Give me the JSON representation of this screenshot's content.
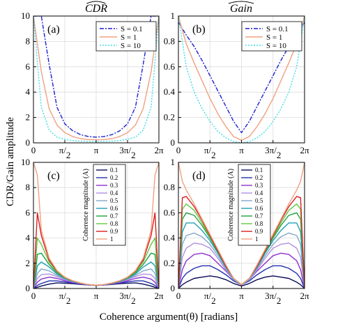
{
  "figure": {
    "ylabel": "CDR/Gain amplitude",
    "xlabel": "Coherence argument(θ) [radians]"
  },
  "chart_data": [
    {
      "id": "a",
      "type": "line",
      "column_title": "CDR",
      "panel_label": "(a)",
      "x_ticks": [
        "0",
        "π/2",
        "π",
        "3π/2",
        "2π"
      ],
      "x_tick_values": [
        0,
        1.5708,
        3.1416,
        4.7124,
        6.2832
      ],
      "xlim": [
        0,
        6.2832
      ],
      "ylim": [
        0,
        10
      ],
      "y_ticks": [
        "0",
        "2",
        "4",
        "6",
        "8",
        "10"
      ],
      "y_tick_values": [
        0,
        2,
        4,
        6,
        8,
        10
      ],
      "grid": true,
      "legend_position": "top-right",
      "x": [
        0,
        0.3927,
        0.7854,
        1.1781,
        1.5708,
        1.9635,
        2.3562,
        2.7489,
        3.1416,
        3.5343,
        3.927,
        4.3197,
        4.7124,
        5.1051,
        5.4978,
        5.8905,
        6.2832
      ],
      "series": [
        {
          "name": "S = 0.1",
          "color": "#1e1ed2",
          "dash": "6,2,2,2",
          "values": [
            10,
            10,
            6.2,
            2.8,
            1.5,
            0.95,
            0.65,
            0.5,
            0.45,
            0.5,
            0.65,
            0.95,
            1.5,
            2.8,
            6.2,
            10,
            10
          ]
        },
        {
          "name": "S = 1",
          "color": "#f0a080",
          "dash": "",
          "values": [
            10,
            5.6,
            2.7,
            1.4,
            0.8,
            0.5,
            0.33,
            0.26,
            0.24,
            0.26,
            0.33,
            0.5,
            0.8,
            1.4,
            2.7,
            5.6,
            10
          ]
        },
        {
          "name": "S = 10",
          "color": "#40dce8",
          "dash": "2,2",
          "values": [
            10,
            2.8,
            1.0,
            0.45,
            0.28,
            0.18,
            0.13,
            0.11,
            0.1,
            0.11,
            0.13,
            0.18,
            0.28,
            0.45,
            1.0,
            2.8,
            10
          ]
        }
      ]
    },
    {
      "id": "b",
      "type": "line",
      "column_title": "Gain",
      "panel_label": "(b)",
      "x_ticks": [
        "0",
        "π/2",
        "π",
        "3π/2",
        "2π"
      ],
      "x_tick_values": [
        0,
        1.5708,
        3.1416,
        4.7124,
        6.2832
      ],
      "xlim": [
        0,
        6.2832
      ],
      "ylim": [
        0,
        1
      ],
      "y_ticks": [
        "0",
        "0.2",
        "0.4",
        "0.6",
        "0.8",
        "1"
      ],
      "y_tick_values": [
        0,
        0.2,
        0.4,
        0.6,
        0.8,
        1
      ],
      "grid": true,
      "legend_position": "top-right",
      "x": [
        0,
        0.3927,
        0.7854,
        1.1781,
        1.5708,
        1.9635,
        2.3562,
        2.7489,
        3.1416,
        3.5343,
        3.927,
        4.3197,
        4.7124,
        5.1051,
        5.4978,
        5.8905,
        6.2832
      ],
      "series": [
        {
          "name": "S = 0.1",
          "color": "#1e1ed2",
          "dash": "6,2,2,2",
          "values": [
            0.95,
            0.85,
            0.76,
            0.65,
            0.53,
            0.41,
            0.29,
            0.17,
            0.08,
            0.17,
            0.29,
            0.41,
            0.53,
            0.65,
            0.76,
            0.85,
            0.95
          ]
        },
        {
          "name": "S = 1",
          "color": "#f0a080",
          "dash": "",
          "values": [
            1.0,
            0.78,
            0.63,
            0.49,
            0.35,
            0.23,
            0.13,
            0.05,
            0.02,
            0.05,
            0.13,
            0.23,
            0.35,
            0.49,
            0.63,
            0.78,
            1.0
          ]
        },
        {
          "name": "S = 10",
          "color": "#40dce8",
          "dash": "2,2",
          "values": [
            1.0,
            0.6,
            0.4,
            0.27,
            0.17,
            0.09,
            0.04,
            0.01,
            0.0,
            0.01,
            0.04,
            0.09,
            0.17,
            0.27,
            0.4,
            0.6,
            1.0
          ]
        }
      ]
    },
    {
      "id": "c",
      "type": "line",
      "panel_label": "(c)",
      "x_ticks": [
        "0",
        "π/2",
        "π",
        "3π/2",
        "2π"
      ],
      "x_tick_values": [
        0,
        1.5708,
        3.1416,
        4.7124,
        6.2832
      ],
      "xlim": [
        0,
        6.2832
      ],
      "ylim": [
        0,
        10
      ],
      "y_ticks": [
        "0",
        "2",
        "4",
        "6",
        "8",
        "10"
      ],
      "y_tick_values": [
        0,
        2,
        4,
        6,
        8,
        10
      ],
      "grid": true,
      "legend_position": "top-center",
      "legend_title": "Coherence magnitude (A)",
      "x": [
        0,
        0.1963,
        0.3927,
        0.7854,
        1.1781,
        1.5708,
        1.9635,
        2.3562,
        2.7489,
        3.1416,
        3.5343,
        3.927,
        4.3197,
        4.7124,
        5.1051,
        5.4978,
        5.8905,
        6.0868,
        6.2832
      ],
      "series": [
        {
          "name": "0.1",
          "color": "#0a0a5a",
          "values": [
            0.0,
            0.1,
            0.2,
            0.35,
            0.45,
            0.42,
            0.38,
            0.32,
            0.27,
            0.25,
            0.27,
            0.32,
            0.38,
            0.42,
            0.45,
            0.35,
            0.2,
            0.1,
            0.0
          ]
        },
        {
          "name": "0.2",
          "color": "#2030b0",
          "values": [
            0.0,
            0.25,
            0.4,
            0.6,
            0.6,
            0.52,
            0.43,
            0.35,
            0.28,
            0.25,
            0.28,
            0.35,
            0.43,
            0.52,
            0.6,
            0.6,
            0.4,
            0.25,
            0.0
          ]
        },
        {
          "name": "0.3",
          "color": "#9030d0",
          "values": [
            0.0,
            0.5,
            0.75,
            0.9,
            0.8,
            0.62,
            0.48,
            0.37,
            0.28,
            0.25,
            0.28,
            0.37,
            0.48,
            0.62,
            0.8,
            0.9,
            0.75,
            0.5,
            0.0
          ]
        },
        {
          "name": "0.4",
          "color": "#b090e0",
          "values": [
            0.0,
            0.8,
            1.1,
            1.15,
            0.95,
            0.7,
            0.52,
            0.38,
            0.29,
            0.25,
            0.29,
            0.38,
            0.52,
            0.7,
            0.95,
            1.15,
            1.1,
            0.8,
            0.0
          ]
        },
        {
          "name": "0.5",
          "color": "#80a8c8",
          "values": [
            0.0,
            1.2,
            1.55,
            1.4,
            1.05,
            0.76,
            0.55,
            0.4,
            0.3,
            0.26,
            0.3,
            0.4,
            0.55,
            0.76,
            1.05,
            1.4,
            1.55,
            1.2,
            0.0
          ]
        },
        {
          "name": "0.6",
          "color": "#20a0b8",
          "values": [
            0.0,
            1.8,
            2.1,
            1.7,
            1.15,
            0.8,
            0.57,
            0.41,
            0.3,
            0.26,
            0.3,
            0.41,
            0.57,
            0.8,
            1.15,
            1.7,
            2.1,
            1.8,
            0.0
          ]
        },
        {
          "name": "0.7",
          "color": "#20a040",
          "values": [
            0.0,
            2.7,
            2.8,
            1.9,
            1.25,
            0.84,
            0.59,
            0.42,
            0.31,
            0.26,
            0.31,
            0.42,
            0.59,
            0.84,
            1.25,
            1.9,
            2.8,
            2.7,
            0.0
          ]
        },
        {
          "name": "0.8",
          "color": "#60c840",
          "values": [
            0.0,
            4.0,
            3.5,
            2.1,
            1.32,
            0.87,
            0.6,
            0.43,
            0.31,
            0.26,
            0.31,
            0.43,
            0.6,
            0.87,
            1.32,
            2.1,
            3.5,
            4.0,
            0.0
          ]
        },
        {
          "name": "0.9",
          "color": "#d82020",
          "values": [
            0.0,
            6.0,
            4.2,
            2.25,
            1.38,
            0.89,
            0.61,
            0.43,
            0.31,
            0.26,
            0.31,
            0.43,
            0.61,
            0.89,
            1.38,
            2.25,
            4.2,
            6.0,
            0.0
          ]
        },
        {
          "name": "1",
          "color": "#f0a080",
          "values": [
            10.0,
            9.0,
            4.6,
            2.4,
            1.42,
            0.9,
            0.62,
            0.44,
            0.31,
            0.26,
            0.31,
            0.44,
            0.62,
            0.9,
            1.42,
            2.4,
            4.6,
            9.0,
            10.0
          ]
        }
      ]
    },
    {
      "id": "d",
      "type": "line",
      "panel_label": "(d)",
      "x_ticks": [
        "0",
        "π/2",
        "π",
        "3π/2",
        "2π"
      ],
      "x_tick_values": [
        0,
        1.5708,
        3.1416,
        4.7124,
        6.2832
      ],
      "xlim": [
        0,
        6.2832
      ],
      "ylim": [
        0,
        1
      ],
      "y_ticks": [
        "0",
        "0.2",
        "0.4",
        "0.6",
        "0.8",
        "1"
      ],
      "y_tick_values": [
        0,
        0.2,
        0.4,
        0.6,
        0.8,
        1
      ],
      "grid": true,
      "legend_position": "top-center",
      "legend_title": "Coherence magnitude (A)",
      "x": [
        0,
        0.1963,
        0.3927,
        0.7854,
        1.1781,
        1.5708,
        1.9635,
        2.3562,
        2.7489,
        3.1416,
        3.5343,
        3.927,
        4.3197,
        4.7124,
        5.1051,
        5.4978,
        5.8905,
        6.0868,
        6.2832
      ],
      "series": [
        {
          "name": "0.1",
          "color": "#0a0a5a",
          "values": [
            0.0,
            0.03,
            0.05,
            0.08,
            0.09,
            0.1,
            0.09,
            0.07,
            0.04,
            0.02,
            0.04,
            0.07,
            0.09,
            0.1,
            0.09,
            0.08,
            0.05,
            0.03,
            0.0
          ]
        },
        {
          "name": "0.2",
          "color": "#2030b0",
          "values": [
            0.0,
            0.08,
            0.12,
            0.16,
            0.18,
            0.18,
            0.15,
            0.11,
            0.06,
            0.03,
            0.06,
            0.11,
            0.15,
            0.18,
            0.18,
            0.16,
            0.12,
            0.08,
            0.0
          ]
        },
        {
          "name": "0.3",
          "color": "#9030d0",
          "values": [
            0.0,
            0.15,
            0.22,
            0.27,
            0.28,
            0.26,
            0.2,
            0.14,
            0.07,
            0.03,
            0.07,
            0.14,
            0.2,
            0.26,
            0.28,
            0.27,
            0.22,
            0.15,
            0.0
          ]
        },
        {
          "name": "0.4",
          "color": "#b090e0",
          "values": [
            0.0,
            0.25,
            0.32,
            0.36,
            0.35,
            0.32,
            0.24,
            0.15,
            0.07,
            0.03,
            0.07,
            0.15,
            0.24,
            0.32,
            0.35,
            0.36,
            0.32,
            0.25,
            0.0
          ]
        },
        {
          "name": "0.5",
          "color": "#80a8c8",
          "values": [
            0.0,
            0.35,
            0.42,
            0.44,
            0.41,
            0.35,
            0.26,
            0.16,
            0.07,
            0.03,
            0.07,
            0.16,
            0.26,
            0.35,
            0.41,
            0.44,
            0.42,
            0.35,
            0.0
          ]
        },
        {
          "name": "0.6",
          "color": "#20a0b8",
          "values": [
            0.0,
            0.45,
            0.52,
            0.52,
            0.46,
            0.38,
            0.28,
            0.17,
            0.08,
            0.03,
            0.08,
            0.17,
            0.28,
            0.38,
            0.46,
            0.52,
            0.52,
            0.45,
            0.0
          ]
        },
        {
          "name": "0.7",
          "color": "#20a040",
          "values": [
            0.0,
            0.55,
            0.6,
            0.58,
            0.5,
            0.4,
            0.29,
            0.18,
            0.08,
            0.03,
            0.08,
            0.18,
            0.29,
            0.4,
            0.5,
            0.58,
            0.6,
            0.55,
            0.0
          ]
        },
        {
          "name": "0.8",
          "color": "#60c840",
          "values": [
            0.0,
            0.63,
            0.67,
            0.62,
            0.52,
            0.41,
            0.3,
            0.18,
            0.08,
            0.03,
            0.08,
            0.18,
            0.3,
            0.41,
            0.52,
            0.62,
            0.67,
            0.63,
            0.0
          ]
        },
        {
          "name": "0.9",
          "color": "#d82020",
          "values": [
            0.0,
            0.72,
            0.73,
            0.65,
            0.54,
            0.42,
            0.3,
            0.18,
            0.08,
            0.03,
            0.08,
            0.18,
            0.3,
            0.42,
            0.54,
            0.65,
            0.73,
            0.72,
            0.0
          ]
        },
        {
          "name": "1",
          "color": "#f0a080",
          "values": [
            1.0,
            0.85,
            0.78,
            0.67,
            0.55,
            0.43,
            0.31,
            0.19,
            0.08,
            0.03,
            0.08,
            0.19,
            0.31,
            0.43,
            0.55,
            0.67,
            0.78,
            0.85,
            1.0
          ]
        }
      ]
    }
  ]
}
